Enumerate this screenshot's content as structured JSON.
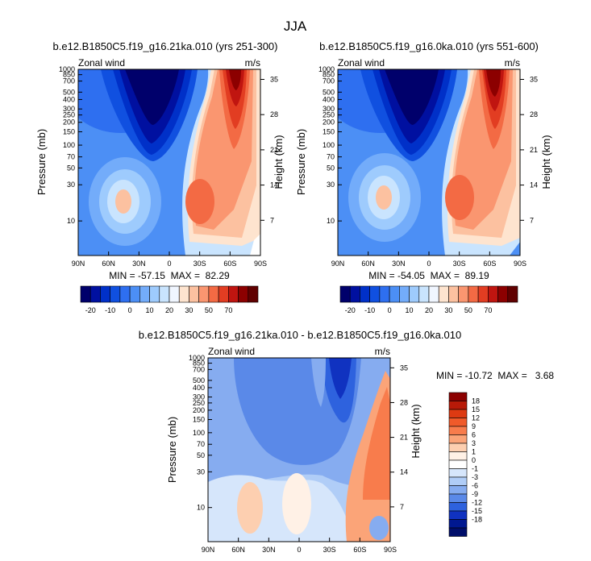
{
  "figure_title": "JJA",
  "colorbar_labels_full": [
    "-20",
    "-10",
    "0",
    "10",
    "20",
    "30",
    "50",
    "70"
  ],
  "colorbar_colors_full": [
    "#00006b",
    "#0010a0",
    "#0030c8",
    "#1050e0",
    "#2e6ff0",
    "#4c8ff5",
    "#73acfa",
    "#9ecbfd",
    "#c9e4fe",
    "#f0f6ff",
    "#fee4cf",
    "#fcc1a0",
    "#fa9670",
    "#f36a44",
    "#e23d22",
    "#c01510",
    "#8c0000",
    "#600000"
  ],
  "colorbar_labels_diff": [
    "18",
    "15",
    "12",
    "9",
    "6",
    "3",
    "1",
    "0",
    "-1",
    "-3",
    "-6",
    "-9",
    "-12",
    "-15",
    "-18"
  ],
  "colorbar_colors_diff": [
    "#8c0000",
    "#b81a08",
    "#dd3a12",
    "#f05a2a",
    "#f87c4c",
    "#fba478",
    "#fdcfb0",
    "#fff1e6",
    "#ffffff",
    "#d6e6fb",
    "#b0cdf7",
    "#86acf0",
    "#5a89e8",
    "#2e62de",
    "#1032c0",
    "#001890",
    "#000e6a"
  ],
  "chart_data": [
    {
      "type": "heatmap",
      "title": "b.e12.B1850C5.f19_g16.21ka.010 (yrs 251-300)",
      "variable": "Zonal wind",
      "units": "m/s",
      "ylabel": "Pressure (mb)",
      "ylabel_right": "Height (km)",
      "xticks": [
        "90N",
        "60N",
        "30N",
        "0",
        "30S",
        "60S",
        "90S"
      ],
      "yticks": [
        "10",
        "30",
        "50",
        "70",
        "100",
        "150",
        "200",
        "250",
        "300",
        "400",
        "500",
        "700",
        "850",
        "1000"
      ],
      "yticks_right": [
        "35",
        "28",
        "21",
        "14",
        "7"
      ],
      "min_max_text": "MIN = -57.15  MAX =  82.29",
      "min": -57.15,
      "max": 82.29,
      "features": [
        {
          "lat": -60,
          "p": 5,
          "value": 82
        },
        {
          "lat": 42,
          "p": 210,
          "value": 25
        },
        {
          "lat": -25,
          "p": 200,
          "value": 30
        },
        {
          "lat": 20,
          "p": 5,
          "value": -57
        }
      ]
    },
    {
      "type": "heatmap",
      "title": "b.e12.B1850C5.f19_g16.0ka.010 (yrs 551-600)",
      "variable": "Zonal wind",
      "units": "m/s",
      "ylabel": "Pressure (mb)",
      "ylabel_right": "Height (km)",
      "xticks": [
        "90N",
        "60N",
        "30N",
        "0",
        "30S",
        "60S",
        "90S"
      ],
      "yticks": [
        "10",
        "30",
        "50",
        "70",
        "100",
        "150",
        "200",
        "250",
        "300",
        "400",
        "500",
        "700",
        "850",
        "1000"
      ],
      "yticks_right": [
        "35",
        "28",
        "21",
        "14",
        "7"
      ],
      "min_max_text": "MIN = -54.05  MAX =  89.19",
      "min": -54.05,
      "max": 89.19,
      "features": [
        {
          "lat": -60,
          "p": 5,
          "value": 89
        },
        {
          "lat": 42,
          "p": 200,
          "value": 25
        },
        {
          "lat": -25,
          "p": 200,
          "value": 30
        },
        {
          "lat": 20,
          "p": 5,
          "value": -54
        }
      ]
    },
    {
      "type": "heatmap",
      "title": "b.e12.B1850C5.f19_g16.21ka.010 - b.e12.B1850C5.f19_g16.0ka.010",
      "variable": "Zonal wind",
      "units": "m/s",
      "ylabel": "Pressure (mb)",
      "ylabel_right": "Height (km)",
      "xticks": [
        "90N",
        "60N",
        "30N",
        "0",
        "30S",
        "60S",
        "90S"
      ],
      "yticks": [
        "10",
        "30",
        "50",
        "70",
        "100",
        "150",
        "200",
        "250",
        "300",
        "400",
        "500",
        "700",
        "850",
        "1000"
      ],
      "yticks_right": [
        "35",
        "28",
        "21",
        "14",
        "7"
      ],
      "min_max_text": "MIN = -10.72  MAX =   3.68",
      "min": -10.72,
      "max": 3.68,
      "features": [
        {
          "lat": -40,
          "p": 5,
          "value": -10.7
        },
        {
          "lat": -75,
          "p": 100,
          "value": 3.7
        },
        {
          "lat": 45,
          "p": 400,
          "value": 2
        }
      ]
    }
  ]
}
